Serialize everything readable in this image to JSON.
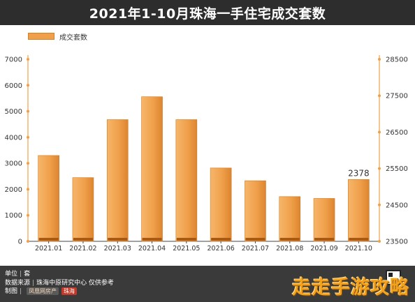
{
  "title": "2021年1-10月珠海一手住宅成交套数",
  "legend": {
    "label": "成交套数",
    "color": "#f0a04b"
  },
  "chart_data": {
    "type": "bar",
    "title": "2021年1-10月珠海一手住宅成交套数",
    "categories": [
      "2021.01",
      "2021.02",
      "2021.03",
      "2021.04",
      "2021.05",
      "2021.06",
      "2021.07",
      "2021.08",
      "2021.09",
      "2021.10"
    ],
    "series": [
      {
        "name": "成交套数",
        "values": [
          3300,
          2450,
          4680,
          5560,
          4680,
          2820,
          2330,
          1720,
          1650,
          2378
        ],
        "color": "#f0a04b"
      }
    ],
    "data_labels": [
      {
        "index": 9,
        "text": "2378"
      }
    ],
    "ylim": [
      0,
      7000
    ],
    "yticks": [
      0,
      1000,
      2000,
      3000,
      4000,
      5000,
      6000,
      7000
    ],
    "y2lim": [
      23500,
      28500
    ],
    "y2ticks": [
      23500,
      24500,
      25500,
      26500,
      27500,
      28500
    ],
    "grid": false,
    "legend_position": "top-left"
  },
  "footer": {
    "unit_label": "单位",
    "unit_value": "套",
    "source_label": "数据来源",
    "source_value": "珠海中原研究中心 仅供参考",
    "made_by_label": "制图",
    "logo_a": "凤凰网房产",
    "logo_b": "珠海"
  },
  "corner_watermark": "走走手游攻略"
}
